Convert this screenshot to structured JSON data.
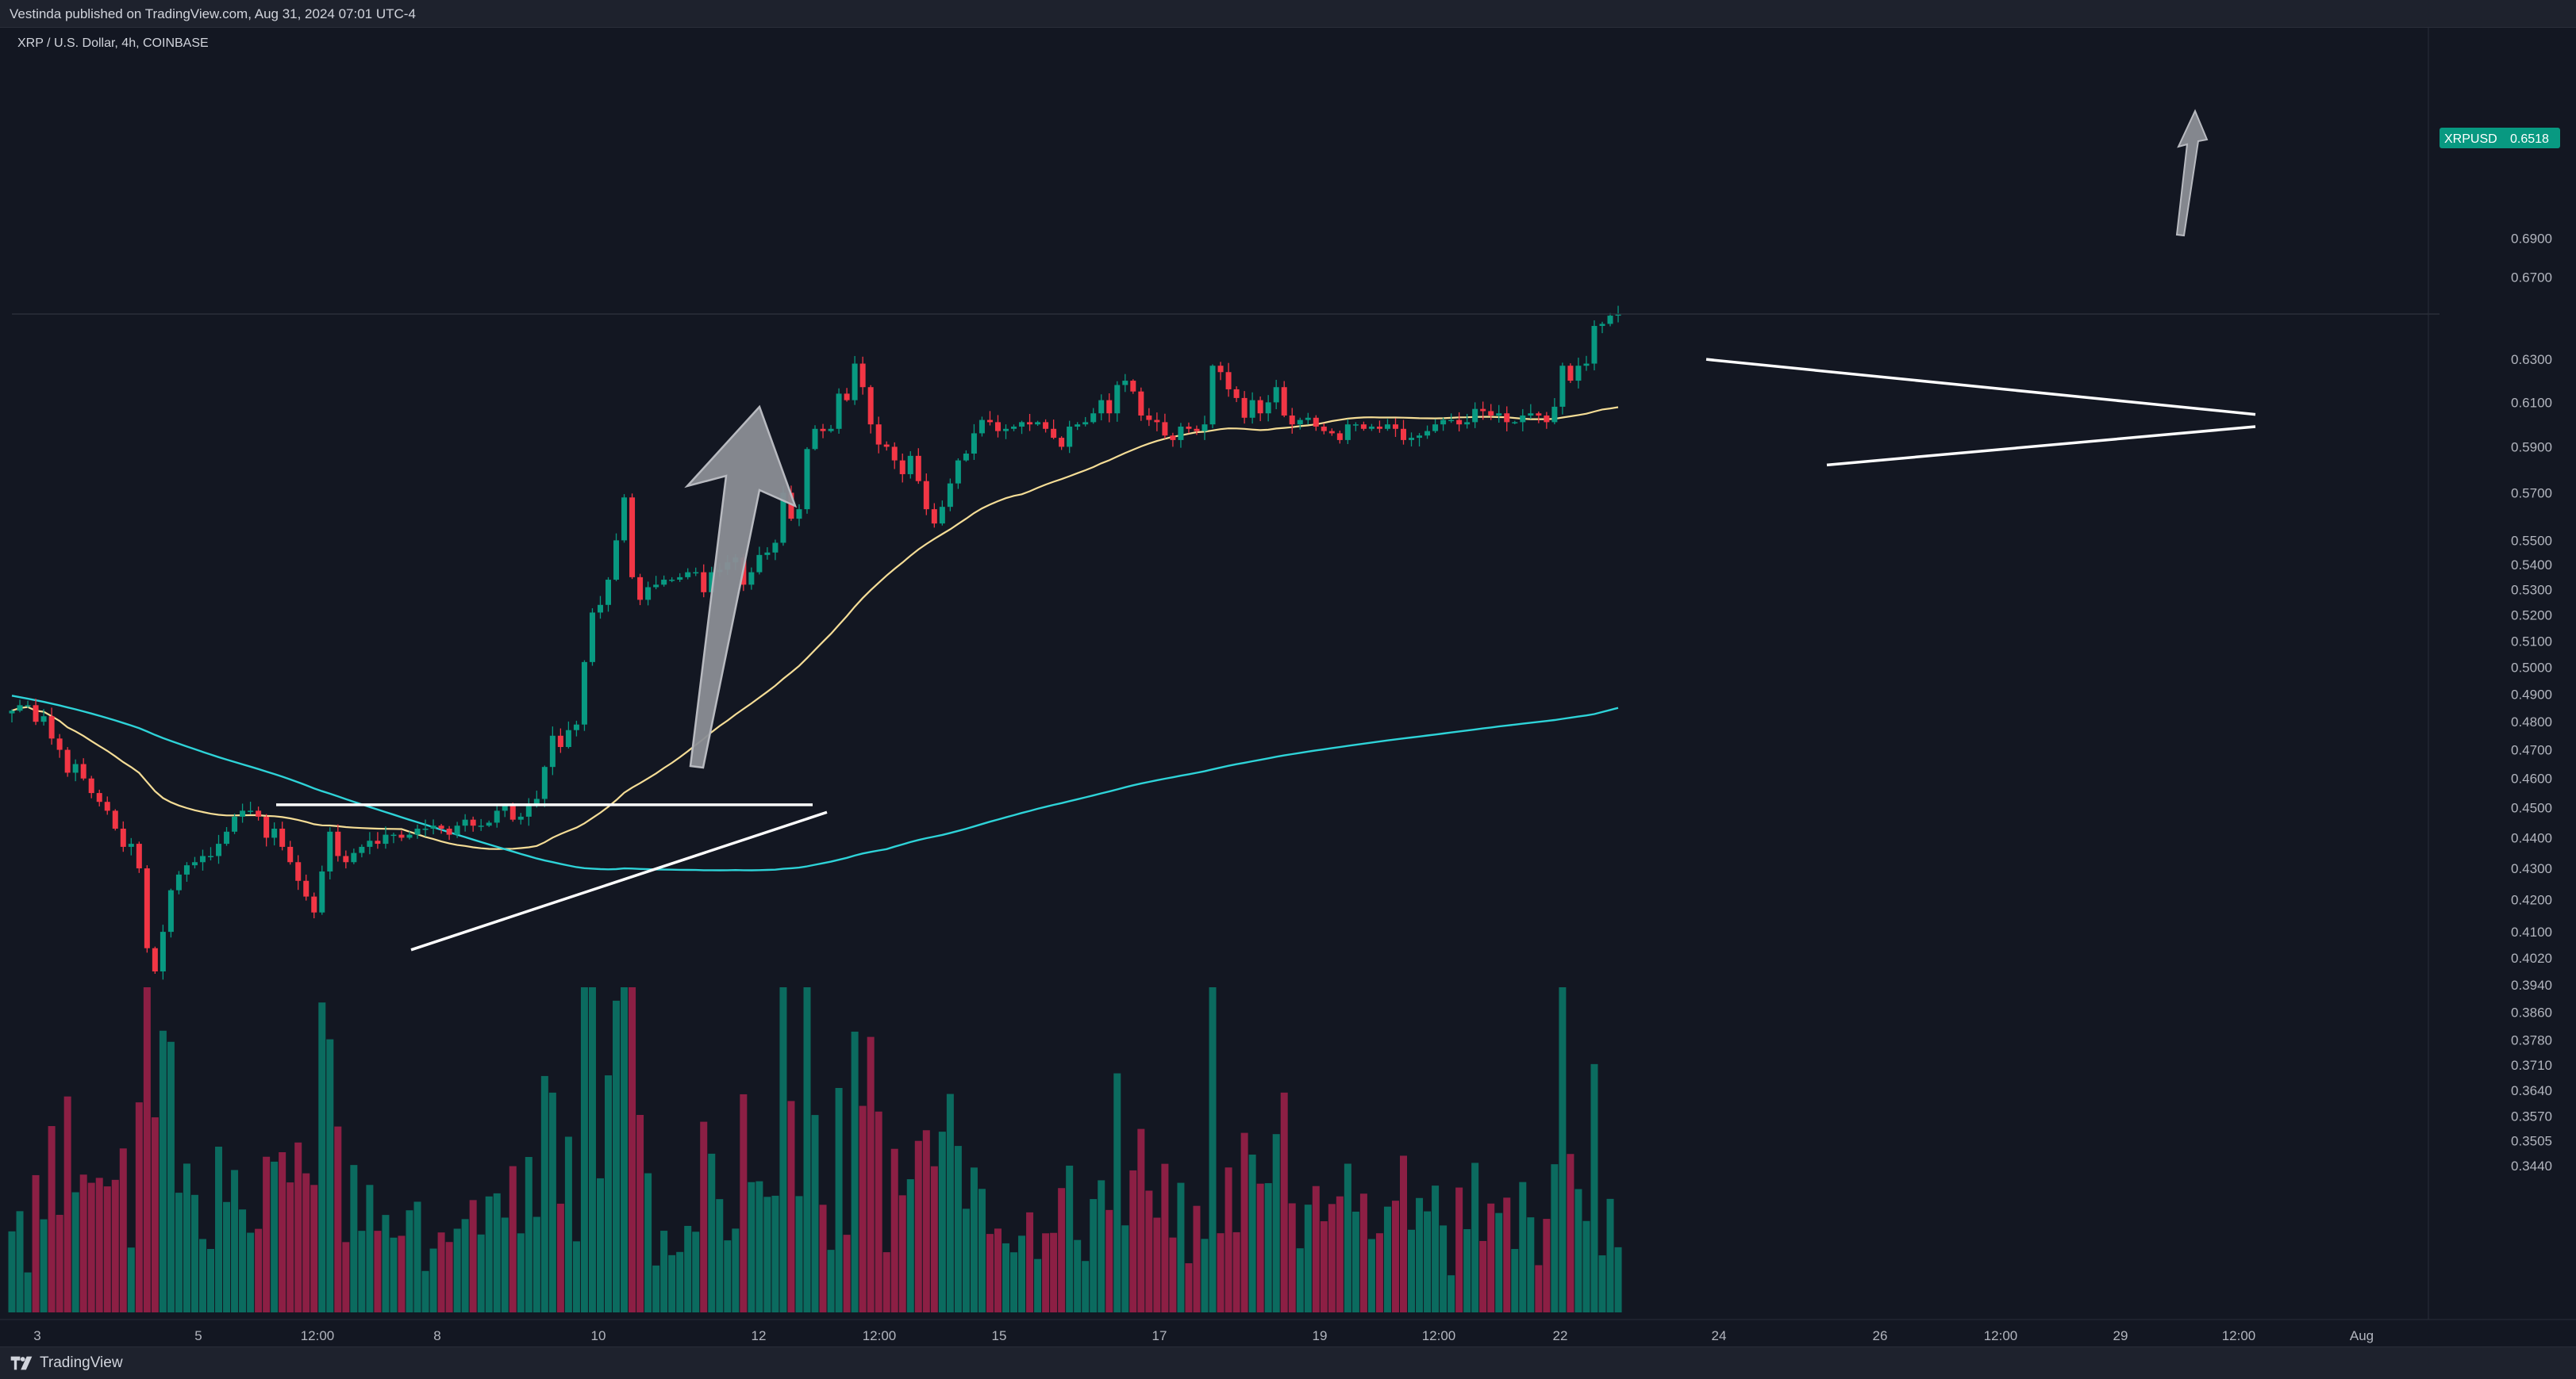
{
  "header": {
    "publish_text": "Vestinda published on TradingView.com, Aug 31, 2024 07:01 UTC-4"
  },
  "legend": {
    "symbol_text": "XRP / U.S. Dollar, 4h, COINBASE"
  },
  "footer": {
    "brand": "TradingView"
  },
  "price_tag": {
    "symbol": "XRPUSD",
    "price": "0.6518"
  },
  "colors": {
    "background": "#131722",
    "up": "#089981",
    "down": "#f23645",
    "volume_up": "#0b6b5f",
    "volume_down": "#8c1f44",
    "ma_fast": "#f5dd96",
    "ma_slow": "#2ed3d8",
    "drawing": "#ffffff"
  },
  "chart_data": {
    "type": "candlestick",
    "title": "XRP / U.S. Dollar, 4h, COINBASE",
    "y_scale": "log",
    "ylim": [
      0.34,
      0.695
    ],
    "y_ticks": [
      "0.6900",
      "0.6700",
      "0.6300",
      "0.6100",
      "0.5900",
      "0.5700",
      "0.5500",
      "0.5400",
      "0.5300",
      "0.5200",
      "0.5100",
      "0.5000",
      "0.4900",
      "0.4800",
      "0.4700",
      "0.4600",
      "0.4500",
      "0.4400",
      "0.4300",
      "0.4200",
      "0.4100",
      "0.4020",
      "0.3940",
      "0.3860",
      "0.3780",
      "0.3710",
      "0.3640",
      "0.3570",
      "0.3505",
      "0.3440"
    ],
    "x_ticks": [
      "3",
      "5",
      "12:00",
      "8",
      "10",
      "12",
      "12:00",
      "15",
      "17",
      "19",
      "12:00",
      "22",
      "24",
      "26",
      "12:00",
      "29",
      "12:00",
      "Aug"
    ],
    "last_price": 0.6518,
    "series": [
      {
        "name": "XRPUSD candles",
        "type": "candlestick",
        "ohlc_close": [
          0.484,
          0.486,
          0.486,
          0.48,
          0.482,
          0.474,
          0.47,
          0.462,
          0.465,
          0.46,
          0.455,
          0.452,
          0.449,
          0.443,
          0.437,
          0.438,
          0.43,
          0.405,
          0.398,
          0.41,
          0.423,
          0.428,
          0.431,
          0.432,
          0.434,
          0.434,
          0.438,
          0.442,
          0.447,
          0.449,
          0.449,
          0.447,
          0.44,
          0.443,
          0.437,
          0.432,
          0.426,
          0.421,
          0.416,
          0.429,
          0.442,
          0.434,
          0.432,
          0.435,
          0.437,
          0.439,
          0.438,
          0.441,
          0.441,
          0.44,
          0.441,
          0.443,
          0.443,
          0.444,
          0.443,
          0.441,
          0.444,
          0.446,
          0.444,
          0.444,
          0.445,
          0.449,
          0.451,
          0.446,
          0.447,
          0.451,
          0.453,
          0.464,
          0.475,
          0.471,
          0.477,
          0.479,
          0.502,
          0.521,
          0.524,
          0.534,
          0.55,
          0.568,
          0.535,
          0.526,
          0.531,
          0.532,
          0.534,
          0.534,
          0.535,
          0.537,
          0.537,
          0.529,
          0.537,
          0.538,
          0.541,
          0.543,
          0.532,
          0.537,
          0.544,
          0.545,
          0.549,
          0.57,
          0.559,
          0.563,
          0.589,
          0.598,
          0.597,
          0.598,
          0.614,
          0.611,
          0.628,
          0.617,
          0.6,
          0.591,
          0.59,
          0.584,
          0.578,
          0.586,
          0.575,
          0.563,
          0.557,
          0.564,
          0.574,
          0.584,
          0.587,
          0.596,
          0.602,
          0.601,
          0.597,
          0.598,
          0.599,
          0.601,
          0.6,
          0.601,
          0.598,
          0.594,
          0.59,
          0.599,
          0.6,
          0.601,
          0.605,
          0.611,
          0.605,
          0.618,
          0.62,
          0.615,
          0.604,
          0.602,
          0.601,
          0.595,
          0.593,
          0.599,
          0.598,
          0.597,
          0.6,
          0.627,
          0.624,
          0.616,
          0.612,
          0.603,
          0.611,
          0.605,
          0.61,
          0.617,
          0.604,
          0.6,
          0.602,
          0.603,
          0.599,
          0.597,
          0.596,
          0.593,
          0.6,
          0.6,
          0.598,
          0.599,
          0.598,
          0.6,
          0.598,
          0.593,
          0.594,
          0.595,
          0.597,
          0.6,
          0.602,
          0.602,
          0.6,
          0.601,
          0.607,
          0.606,
          0.604,
          0.605,
          0.601,
          0.601,
          0.604,
          0.605,
          0.604,
          0.601,
          0.608,
          0.627,
          0.62,
          0.627,
          0.628,
          0.646,
          0.647,
          0.651,
          0.652
        ]
      },
      {
        "name": "MA fast",
        "type": "line"
      },
      {
        "name": "MA slow",
        "type": "line"
      },
      {
        "name": "Volume",
        "type": "bar"
      }
    ],
    "annotations": [
      {
        "type": "horizontal_resistance",
        "price": 0.451
      },
      {
        "type": "ascending_trendline",
        "from_price": 0.4045,
        "to_price": 0.4485
      },
      {
        "type": "arrow_up",
        "label": ""
      },
      {
        "type": "descending_trendline",
        "from_price": 0.63,
        "to_price": 0.6045
      },
      {
        "type": "ascending_trendline",
        "from_price": 0.582,
        "to_price": 0.599
      },
      {
        "type": "arrow_up",
        "label": ""
      }
    ],
    "grid": false,
    "legend_placement": "top-left"
  }
}
